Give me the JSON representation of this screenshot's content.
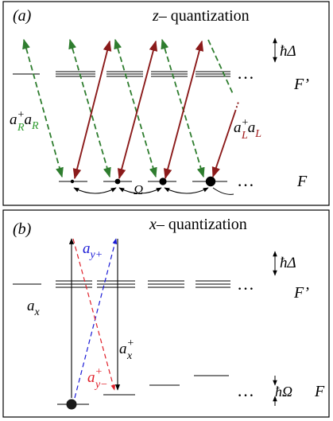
{
  "panel_a": {
    "label": "(a)",
    "title_var": "z",
    "title_rest": "– quantization",
    "upper_level": "F’",
    "lower_level": "F",
    "splitting": "ħΔ",
    "dots": "…",
    "coupling": "Ω",
    "op_right_a": "a",
    "op_right_sup": "+",
    "op_right_sub": "R",
    "op_right_b": "a",
    "op_right_sub2": "R",
    "op_left_a": "a",
    "op_left_sup": "+",
    "op_left_sub": "L",
    "op_left_b": "a",
    "op_left_sub2": "L"
  },
  "panel_b": {
    "label": "(b)",
    "title_var": "x",
    "title_rest": "– quantization",
    "upper_level": "F’",
    "lower_level": "F",
    "splitting_upper": "ħΔ",
    "splitting_lower": "ħΩ",
    "dots_upper": "…",
    "dots_lower": "…",
    "op_x": "a",
    "op_x_sub": "x",
    "op_xplus": "a",
    "op_xplus_sup": "+",
    "op_xplus_sub": "x",
    "op_yplus": "a",
    "op_yplus_sub": "y+",
    "op_ydag": "a",
    "op_ydag_sup": "+",
    "op_ydag_sub": "y−"
  },
  "colors": {
    "red_arrow": "#8b1a1a",
    "green_arrow": "#2e7d2e",
    "blue": "#1a1ad6",
    "red": "#e0202a",
    "green_label": "#2e9a2e",
    "red_label": "#a01818"
  }
}
